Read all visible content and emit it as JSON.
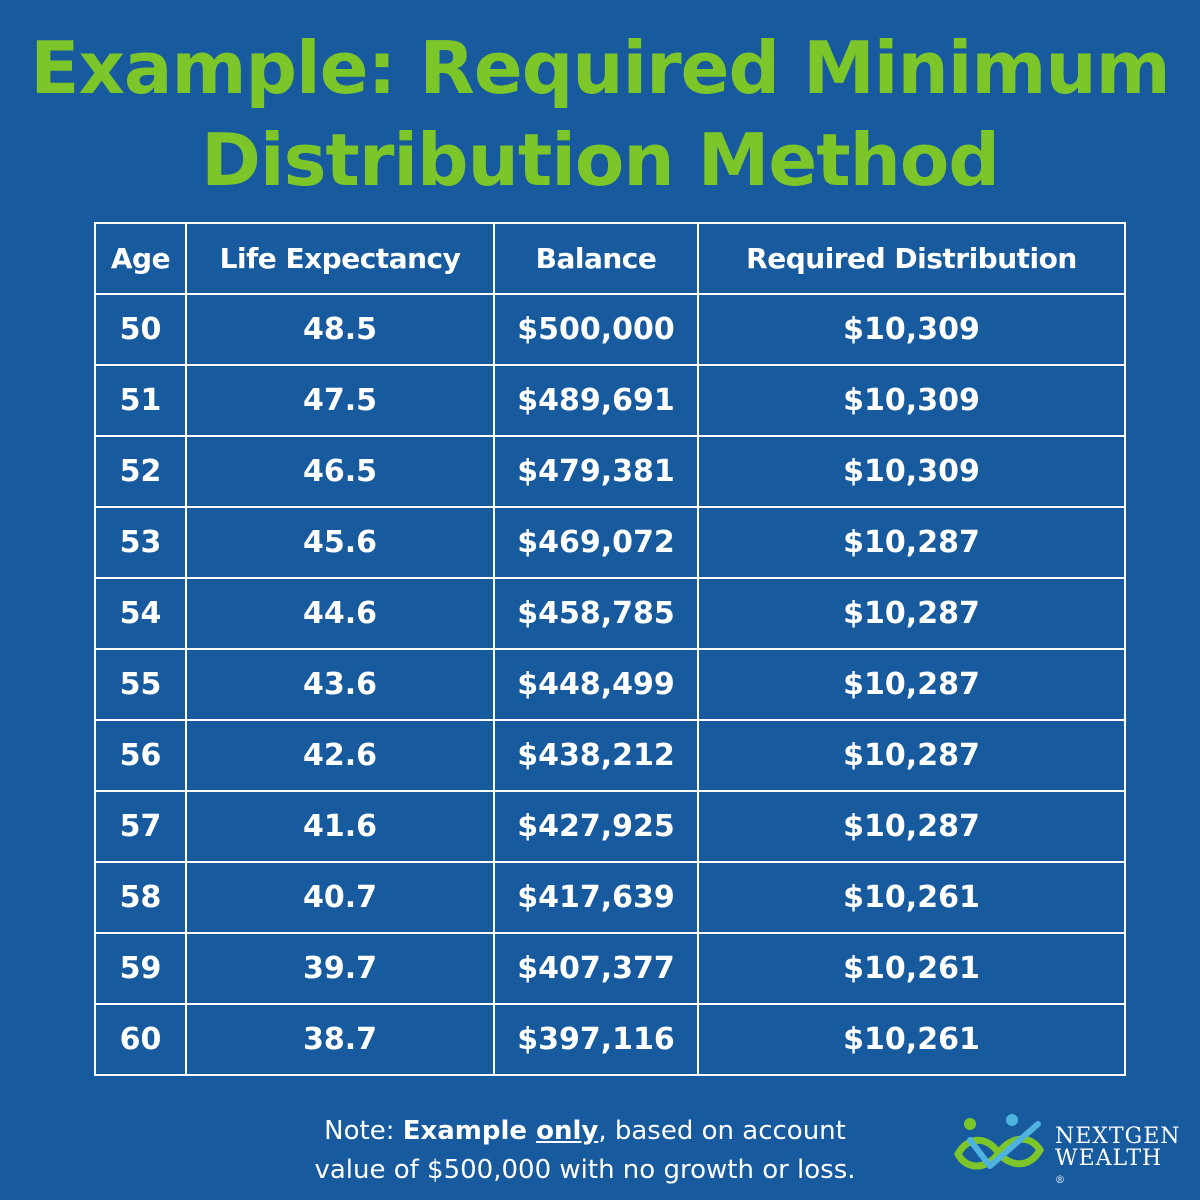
{
  "title": {
    "line1": "Example: Required Minimum",
    "line2": "Distribution Method"
  },
  "table": {
    "headers": [
      "Age",
      "Life Expectancy",
      "Balance",
      "Required Distribution"
    ],
    "rows": [
      [
        "50",
        "48.5",
        "$500,000",
        "$10,309"
      ],
      [
        "51",
        "47.5",
        "$489,691",
        "$10,309"
      ],
      [
        "52",
        "46.5",
        "$479,381",
        "$10,309"
      ],
      [
        "53",
        "45.6",
        "$469,072",
        "$10,287"
      ],
      [
        "54",
        "44.6",
        "$458,785",
        "$10,287"
      ],
      [
        "55",
        "43.6",
        "$448,499",
        "$10,287"
      ],
      [
        "56",
        "42.6",
        "$438,212",
        "$10,287"
      ],
      [
        "57",
        "41.6",
        "$427,925",
        "$10,287"
      ],
      [
        "58",
        "40.7",
        "$417,639",
        "$10,261"
      ],
      [
        "59",
        "39.7",
        "$407,377",
        "$10,261"
      ],
      [
        "60",
        "38.7",
        "$397,116",
        "$10,261"
      ]
    ]
  },
  "note": {
    "prefix": "Note: ",
    "bold": "Example ",
    "underlined": "only",
    "rest_line1": ", based on account",
    "line2": "value of $500,000 with no growth or loss."
  },
  "logo": {
    "line1": "NEXTGEN",
    "line2": "WEALTH",
    "mark": "®"
  },
  "colors": {
    "background": "#175a9e",
    "title": "#7cc62a",
    "text": "#ffffff"
  }
}
